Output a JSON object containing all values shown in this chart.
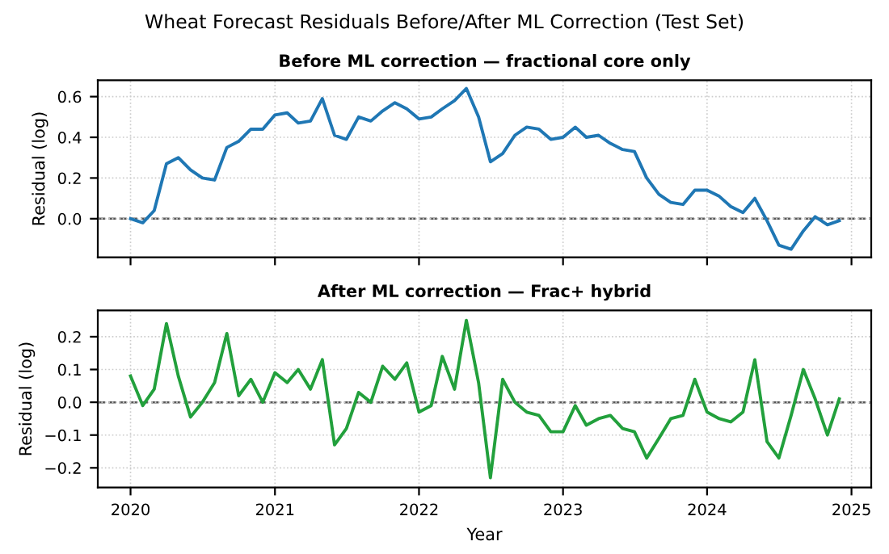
{
  "chart_data": [
    {
      "type": "line",
      "title": "Wheat Forecast Residuals Before/After ML Correction (Test Set)",
      "subtitle": "Before ML correction — fractional core only",
      "ylabel": "Residual (log)",
      "x": [
        "2020-01",
        "2020-02",
        "2020-03",
        "2020-04",
        "2020-05",
        "2020-06",
        "2020-07",
        "2020-08",
        "2020-09",
        "2020-10",
        "2020-11",
        "2020-12",
        "2021-01",
        "2021-02",
        "2021-03",
        "2021-04",
        "2021-05",
        "2021-06",
        "2021-07",
        "2021-08",
        "2021-09",
        "2021-10",
        "2021-11",
        "2021-12",
        "2022-01",
        "2022-02",
        "2022-03",
        "2022-04",
        "2022-05",
        "2022-06",
        "2022-07",
        "2022-08",
        "2022-09",
        "2022-10",
        "2022-11",
        "2022-12",
        "2023-01",
        "2023-02",
        "2023-03",
        "2023-04",
        "2023-05",
        "2023-06",
        "2023-07",
        "2023-08",
        "2023-09",
        "2023-10",
        "2023-11",
        "2023-12",
        "2024-01",
        "2024-02",
        "2024-03",
        "2024-04",
        "2024-05",
        "2024-06",
        "2024-07",
        "2024-08",
        "2024-09",
        "2024-10",
        "2024-11",
        "2024-12"
      ],
      "series": [
        {
          "color": "#1f77b4",
          "values": [
            0.0,
            -0.02,
            0.04,
            0.27,
            0.3,
            0.24,
            0.2,
            0.19,
            0.35,
            0.38,
            0.44,
            0.44,
            0.51,
            0.52,
            0.47,
            0.48,
            0.59,
            0.41,
            0.39,
            0.5,
            0.48,
            0.53,
            0.57,
            0.54,
            0.49,
            0.5,
            0.54,
            0.58,
            0.64,
            0.5,
            0.28,
            0.32,
            0.41,
            0.45,
            0.44,
            0.39,
            0.4,
            0.45,
            0.4,
            0.41,
            0.37,
            0.34,
            0.33,
            0.2,
            0.12,
            0.08,
            0.07,
            0.14,
            0.14,
            0.11,
            0.06,
            0.03,
            0.1,
            -0.01,
            -0.13,
            -0.15,
            -0.06,
            0.01,
            -0.03,
            -0.01
          ]
        }
      ],
      "xlim": [
        "2019-10-10",
        "2025-02-20"
      ],
      "xticks": [
        {
          "value": "2020-01-01",
          "label": null
        },
        {
          "value": "2021-01-01",
          "label": null
        },
        {
          "value": "2022-01-01",
          "label": null
        },
        {
          "value": "2023-01-01",
          "label": null
        },
        {
          "value": "2024-01-01",
          "label": null
        },
        {
          "value": "2025-01-01",
          "label": null
        }
      ],
      "ylim": [
        -0.19,
        0.68
      ],
      "yticks": [
        {
          "value": 0,
          "label": "0.0"
        },
        0.2,
        0.4,
        0.6
      ],
      "tick_labels": "y",
      "grid": true,
      "line_style": "solid",
      "ref_lines": [
        {
          "axis": "y",
          "value": 0,
          "color": "#555555",
          "line_style": "dashed"
        }
      ]
    },
    {
      "type": "line",
      "title": "After ML correction — Frac+ hybrid",
      "xlabel": "Year",
      "ylabel": "Residual (log)",
      "x": [
        "2020-01",
        "2020-02",
        "2020-03",
        "2020-04",
        "2020-05",
        "2020-06",
        "2020-07",
        "2020-08",
        "2020-09",
        "2020-10",
        "2020-11",
        "2020-12",
        "2021-01",
        "2021-02",
        "2021-03",
        "2021-04",
        "2021-05",
        "2021-06",
        "2021-07",
        "2021-08",
        "2021-09",
        "2021-10",
        "2021-11",
        "2021-12",
        "2022-01",
        "2022-02",
        "2022-03",
        "2022-04",
        "2022-05",
        "2022-06",
        "2022-07",
        "2022-08",
        "2022-09",
        "2022-10",
        "2022-11",
        "2022-12",
        "2023-01",
        "2023-02",
        "2023-03",
        "2023-04",
        "2023-05",
        "2023-06",
        "2023-07",
        "2023-08",
        "2023-09",
        "2023-10",
        "2023-11",
        "2023-12",
        "2024-01",
        "2024-02",
        "2024-03",
        "2024-04",
        "2024-05",
        "2024-06",
        "2024-07",
        "2024-08",
        "2024-09",
        "2024-10",
        "2024-11",
        "2024-12"
      ],
      "series": [
        {
          "color": "#22a03c",
          "values": [
            0.08,
            -0.01,
            0.04,
            0.24,
            0.08,
            -0.045,
            0.0,
            0.06,
            0.21,
            0.02,
            0.07,
            0.0,
            0.09,
            0.06,
            0.1,
            0.04,
            0.13,
            -0.13,
            -0.08,
            0.03,
            0.0,
            0.11,
            0.07,
            0.12,
            -0.03,
            -0.01,
            0.14,
            0.04,
            0.25,
            0.06,
            -0.23,
            0.07,
            0.0,
            -0.03,
            -0.04,
            -0.09,
            -0.09,
            -0.01,
            -0.07,
            -0.05,
            -0.04,
            -0.08,
            -0.09,
            -0.17,
            -0.11,
            -0.05,
            -0.04,
            0.07,
            -0.03,
            -0.05,
            -0.06,
            -0.03,
            0.13,
            -0.12,
            -0.17,
            -0.04,
            0.1,
            0.01,
            -0.1,
            0.01
          ]
        }
      ],
      "xlim": [
        "2019-10-10",
        "2025-02-20"
      ],
      "xticks": [
        {
          "value": "2020-01-01",
          "label": "2020"
        },
        {
          "value": "2021-01-01",
          "label": "2021"
        },
        {
          "value": "2022-01-01",
          "label": "2022"
        },
        {
          "value": "2023-01-01",
          "label": "2023"
        },
        {
          "value": "2024-01-01",
          "label": "2024"
        },
        {
          "value": "2025-01-01",
          "label": "2025"
        }
      ],
      "ylim": [
        -0.26,
        0.28
      ],
      "yticks": [
        {
          "value": -0.2,
          "label": "−0.2"
        },
        {
          "value": -0.1,
          "label": "−0.1"
        },
        {
          "value": 0,
          "label": "0.0"
        },
        0.1,
        0.2
      ],
      "grid": true,
      "line_style": "solid",
      "ref_lines": [
        {
          "axis": "y",
          "value": 0,
          "color": "#555555",
          "line_style": "dashed"
        }
      ]
    }
  ]
}
